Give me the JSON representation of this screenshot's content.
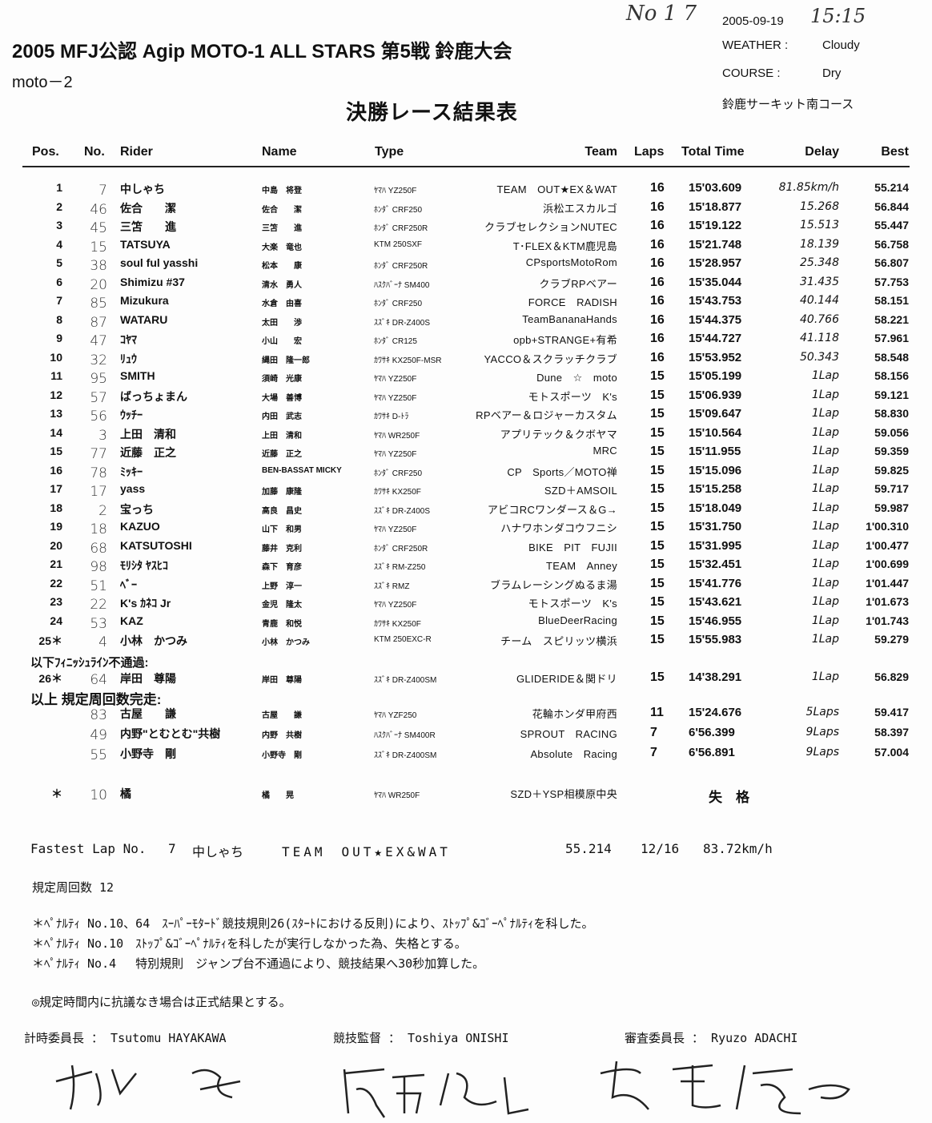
{
  "header": {
    "doc_no": "No 1 7",
    "date": "2005-09-19",
    "time_handwritten": "15:15",
    "weather_label": "WEATHER :",
    "weather": "Cloudy",
    "course_label": "COURSE   :",
    "course": "Dry",
    "venue": "鈴鹿サーキット南コース",
    "title": "2005 MFJ公認 Agip MOTO-1 ALL STARS 第5戦 鈴鹿大会",
    "class": "moto－2",
    "subtitle": "決勝レース結果表"
  },
  "columns": [
    "Pos.",
    "No.",
    "Rider",
    "Name",
    "Type",
    "Team",
    "Laps",
    "Total Time",
    "Delay",
    "Best"
  ],
  "results": [
    {
      "pos": "1",
      "no": "7",
      "rider": "中しゃち",
      "name": "中島　将登",
      "type": "ﾔﾏﾊ YZ250F",
      "team": "TEAM　OUT★EX＆WAT",
      "laps": "16",
      "total": "15'03.609",
      "delay": "81.85km/h",
      "best": "55.214"
    },
    {
      "pos": "2",
      "no": "46",
      "rider": "佐合　　潔",
      "name": "佐合　　潔",
      "type": "ﾎﾝﾀﾞ CRF250",
      "team": "浜松エスカルゴ",
      "laps": "16",
      "total": "15'18.877",
      "delay": "15.268",
      "best": "56.844"
    },
    {
      "pos": "3",
      "no": "45",
      "rider": "三笘　　進",
      "name": "三笘　　進",
      "type": "ﾎﾝﾀﾞ CRF250R",
      "team": "クラブセレクションNUTEC",
      "laps": "16",
      "total": "15'19.122",
      "delay": "15.513",
      "best": "55.447"
    },
    {
      "pos": "4",
      "no": "15",
      "rider": "TATSUYA",
      "name": "大楽　竜也",
      "type": "KTM 250SXF",
      "team": "T･FLEX＆KTM鹿児島",
      "laps": "16",
      "total": "15'21.748",
      "delay": "18.139",
      "best": "56.758"
    },
    {
      "pos": "5",
      "no": "38",
      "rider": "soul ful yasshi",
      "name": "松本　　康",
      "type": "ﾎﾝﾀﾞ CRF250R",
      "team": "CPsportsMotoRom",
      "laps": "16",
      "total": "15'28.957",
      "delay": "25.348",
      "best": "56.807"
    },
    {
      "pos": "6",
      "no": "20",
      "rider": "Shimizu #37",
      "name": "清水　勇人",
      "type": "ﾊｽｸﾊﾞｰﾅ SM400",
      "team": "クラブRPベアー",
      "laps": "16",
      "total": "15'35.044",
      "delay": "31.435",
      "best": "57.753"
    },
    {
      "pos": "7",
      "no": "85",
      "rider": "Mizukura",
      "name": "水倉　由喜",
      "type": "ﾎﾝﾀﾞ CRF250",
      "team": "FORCE　RADISH",
      "laps": "16",
      "total": "15'43.753",
      "delay": "40.144",
      "best": "58.151"
    },
    {
      "pos": "8",
      "no": "87",
      "rider": "WATARU",
      "name": "太田　　渉",
      "type": "ｽｽﾞｷ DR-Z400S",
      "team": "TeamBananaHands",
      "laps": "16",
      "total": "15'44.375",
      "delay": "40.766",
      "best": "58.221"
    },
    {
      "pos": "9",
      "no": "47",
      "rider": "ｺﾔﾏ",
      "name": "小山　　宏",
      "type": "ﾎﾝﾀﾞ CR125",
      "team": "opb+STRANGE+有希",
      "laps": "16",
      "total": "15'44.727",
      "delay": "41.118",
      "best": "57.961"
    },
    {
      "pos": "10",
      "no": "32",
      "rider": "ﾘｭｳ",
      "name": "縄田　隆一郎",
      "type": "ｶﾜｻｷ KX250F-MSR",
      "team": "YACCO＆スクラッチクラブ",
      "laps": "16",
      "total": "15'53.952",
      "delay": "50.343",
      "best": "58.548"
    },
    {
      "pos": "11",
      "no": "95",
      "rider": "SMITH",
      "name": "須崎　光康",
      "type": "ﾔﾏﾊ YZ250F",
      "team": "Dune　☆　moto",
      "laps": "15",
      "total": "15'05.199",
      "delay": "1Lap",
      "best": "58.156"
    },
    {
      "pos": "12",
      "no": "57",
      "rider": "ばっちょまん",
      "name": "大場　善博",
      "type": "ﾔﾏﾊ YZ250F",
      "team": "モトスポーツ　K's",
      "laps": "15",
      "total": "15'06.939",
      "delay": "1Lap",
      "best": "59.121"
    },
    {
      "pos": "13",
      "no": "56",
      "rider": "ｳｯﾁｰ",
      "name": "内田　武志",
      "type": "ｶﾜｻｷ D-ﾄﾗ",
      "team": "RPベアー＆ロジャーカスタム",
      "laps": "15",
      "total": "15'09.647",
      "delay": "1Lap",
      "best": "58.830"
    },
    {
      "pos": "14",
      "no": "3",
      "rider": "上田　清和",
      "name": "上田　清和",
      "type": "ﾔﾏﾊ WR250F",
      "team": "アプリテック＆クボヤマ",
      "laps": "15",
      "total": "15'10.564",
      "delay": "1Lap",
      "best": "59.056"
    },
    {
      "pos": "15",
      "no": "77",
      "rider": "近藤　正之",
      "name": "近藤　正之",
      "type": "ﾔﾏﾊ YZ250F",
      "team": "MRC",
      "laps": "15",
      "total": "15'11.955",
      "delay": "1Lap",
      "best": "59.359"
    },
    {
      "pos": "16",
      "no": "78",
      "rider": "ﾐｯｷｰ",
      "name": "BEN-BASSAT MICKY",
      "type": "ﾎﾝﾀﾞ CRF250",
      "team": "CP　Sports／MOTO禅",
      "laps": "15",
      "total": "15'15.096",
      "delay": "1Lap",
      "best": "59.825"
    },
    {
      "pos": "17",
      "no": "17",
      "rider": "yass",
      "name": "加藤　康隆",
      "type": "ｶﾜｻｷ KX250F",
      "team": "SZD＋AMSOIL",
      "laps": "15",
      "total": "15'15.258",
      "delay": "1Lap",
      "best": "59.717"
    },
    {
      "pos": "18",
      "no": "2",
      "rider": "宝っち",
      "name": "高良　昌史",
      "type": "ｽｽﾞｷ DR-Z400S",
      "team": "アビコRCワンダース＆G→",
      "laps": "15",
      "total": "15'18.049",
      "delay": "1Lap",
      "best": "59.987"
    },
    {
      "pos": "19",
      "no": "18",
      "rider": "KAZUO",
      "name": "山下　和男",
      "type": "ﾔﾏﾊ YZ250F",
      "team": "ハナワホンダコウフニシ",
      "laps": "15",
      "total": "15'31.750",
      "delay": "1Lap",
      "best": "1'00.310"
    },
    {
      "pos": "20",
      "no": "68",
      "rider": "KATSUTOSHI",
      "name": "藤井　克利",
      "type": "ﾎﾝﾀﾞ CRF250R",
      "team": "BIKE　PIT　FUJII",
      "laps": "15",
      "total": "15'31.995",
      "delay": "1Lap",
      "best": "1'00.477"
    },
    {
      "pos": "21",
      "no": "98",
      "rider": "ﾓﾘｼﾀ ﾔｽﾋｺ",
      "name": "森下　育彦",
      "type": "ｽｽﾞｷ RM-Z250",
      "team": "TEAM　Anney",
      "laps": "15",
      "total": "15'32.451",
      "delay": "1Lap",
      "best": "1'00.699"
    },
    {
      "pos": "22",
      "no": "51",
      "rider": "ﾍﾞｰ",
      "name": "上野　淳一",
      "type": "ｽｽﾞｷ RMZ",
      "team": "ブラムレーシングぬるま湯",
      "laps": "15",
      "total": "15'41.776",
      "delay": "1Lap",
      "best": "1'01.447"
    },
    {
      "pos": "23",
      "no": "22",
      "rider": "K's ｶﾈｺ Jr",
      "name": "金児　隆太",
      "type": "ﾔﾏﾊ YZ250F",
      "team": "モトスポーツ　K's",
      "laps": "15",
      "total": "15'43.621",
      "delay": "1Lap",
      "best": "1'01.673"
    },
    {
      "pos": "24",
      "no": "53",
      "rider": "KAZ",
      "name": "青鹿　和悦",
      "type": "ｶﾜｻｷ KX250F",
      "team": "BlueDeerRacing",
      "laps": "15",
      "total": "15'46.955",
      "delay": "1Lap",
      "best": "1'01.743"
    },
    {
      "pos": "25＊",
      "no": "4",
      "rider": "小林　かつみ",
      "name": "小林　かつみ",
      "type": "KTM 250EXC-R",
      "team": "チーム　スピリッツ横浜",
      "laps": "15",
      "total": "15'55.983",
      "delay": "1Lap",
      "best": "59.279"
    }
  ],
  "section_not_finish": "以下ﾌｨﾆｯｼｭﾗｲﾝ不通過:",
  "not_finish": [
    {
      "pos": "26＊",
      "no": "64",
      "rider": "岸田　尊陽",
      "name": "岸田　尊陽",
      "type": "ｽｽﾞｷ DR-Z400SM",
      "team": "GLIDERIDE＆関ドリ",
      "laps": "15",
      "total": "14'38.291",
      "delay": "1Lap",
      "best": "56.829"
    }
  ],
  "section_completed": "以上 規定周回数完走:",
  "others": [
    {
      "pos": "",
      "no": "83",
      "rider": "古屋　　謙",
      "name": "古屋　　謙",
      "type": "ﾔﾏﾊ YZF250",
      "team": "花輪ホンダ甲府西",
      "laps": "11",
      "total": "15'24.676",
      "delay": "5Laps",
      "best": "59.417"
    },
    {
      "pos": "",
      "no": "49",
      "rider": "内野\"とむとむ\"共樹",
      "name": "内野　共樹",
      "type": "ﾊｽｸﾊﾞｰﾅ SM400R",
      "team": "SPROUT　RACING",
      "laps": "7",
      "total": "6'56.399",
      "delay": "9Laps",
      "best": "58.397"
    },
    {
      "pos": "",
      "no": "55",
      "rider": "小野寺　剛",
      "name": "小野寺　剛",
      "type": "ｽｽﾞｷ DR-Z400SM",
      "team": "Absolute　Racing",
      "laps": "7",
      "total": "6'56.891",
      "delay": "9Laps",
      "best": "57.004"
    }
  ],
  "disqualified": [
    {
      "pos": "＊",
      "no": "10",
      "rider": "橘",
      "name": "橘　　晃",
      "type": "ﾔﾏﾊ WR250F",
      "team": "SZD＋YSP相模原中央",
      "laps": "",
      "total": "失　格",
      "delay": "",
      "best": ""
    }
  ],
  "fastest_lap": {
    "label": "Fastest Lap No.",
    "no": "7",
    "rider": "中しゃち",
    "team": "TEAM　OUT★EX&WAT",
    "time": "55.214",
    "lap": "12/16",
    "speed": "83.72km/h"
  },
  "required_laps": "規定周回数 12",
  "penalties": [
    "＊ﾍﾟﾅﾙﾃｨ No.10、64　ｽｰﾊﾟｰﾓﾀｰﾄﾞ競技規則26(ｽﾀｰﾄにおける反則)により、ｽﾄｯﾌﾟ&ｺﾞｰﾍﾟﾅﾙﾃｨを科した。",
    "＊ﾍﾟﾅﾙﾃｨ No.10　ｽﾄｯﾌﾟ&ｺﾞｰﾍﾟﾅﾙﾃｨを科したが実行しなかった為、失格とする。",
    "＊ﾍﾟﾅﾙﾃｨ No.4　 特別規則　ジャンプ台不通過により、競技結果へ30秒加算した。"
  ],
  "protest_note": "◎規定時間内に抗議なき場合は正式結果とする。",
  "officials": [
    {
      "role": "計時委員長 ： Tsutomu HAYAKAWA",
      "signature": "早川 勉"
    },
    {
      "role": "競技監督 ： Toshiya ONISHI",
      "signature": "尾西 俊也"
    },
    {
      "role": "審査委員長 ： Ryuzo ADACHI",
      "signature": "安達 龍蔵"
    }
  ]
}
